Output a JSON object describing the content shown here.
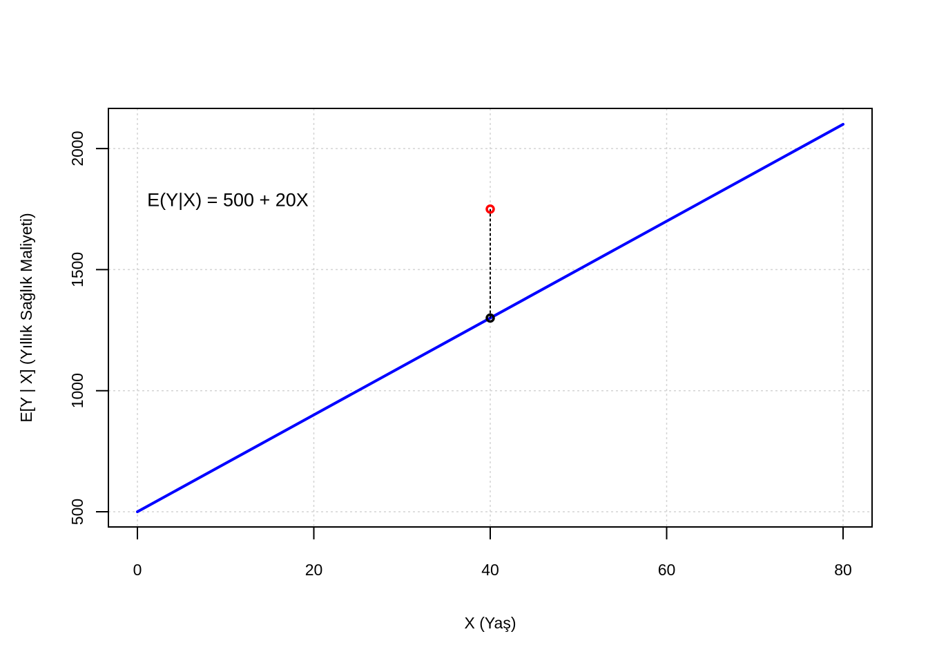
{
  "chart_data": {
    "type": "line",
    "title": "",
    "xlabel": "X (Yaş)",
    "ylabel": "E[Y | X] (Yıllık Sağlık Maliyeti)",
    "xlim": [
      0,
      80
    ],
    "ylim": [
      500,
      2100
    ],
    "xticks": [
      0,
      20,
      40,
      60,
      80
    ],
    "yticks": [
      500,
      1000,
      1500,
      2000
    ],
    "grid": true,
    "series": [
      {
        "x": [
          0,
          10,
          20,
          30,
          40,
          50,
          60,
          70,
          80
        ],
        "y": [
          500,
          700,
          900,
          1100,
          1300,
          1500,
          1700,
          1900,
          2100
        ],
        "color": "#0000ff"
      }
    ],
    "points": [
      {
        "x": 40,
        "y": 1300,
        "color": "#000000"
      },
      {
        "x": 40,
        "y": 1750,
        "color": "#ff0000"
      }
    ],
    "segment": {
      "x": 40,
      "y_from": 1300,
      "y_to": 1750,
      "style": "dashed",
      "color": "#000000"
    },
    "annotation": {
      "text": "E(Y|X) = 500 + 20X",
      "x": 1.5,
      "y": 1790
    }
  }
}
